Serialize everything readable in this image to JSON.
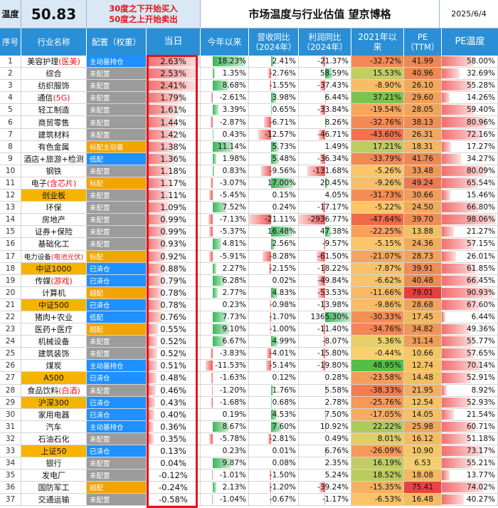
{
  "header": {
    "temp_label": "温度",
    "temp_value": "50.83",
    "rule_line1": "30度之下开始买入",
    "rule_line2": "50度之上开始卖出",
    "title": "市场温度与行业估值 望京博格",
    "date": "2025/6/4"
  },
  "columns": {
    "idx": "序号",
    "name": "行业名称",
    "cfg": "配置（权重）",
    "today": "当日",
    "ytd": "今年以来",
    "rev": "营收同比\n（2024年）",
    "prof": "利润同比\n（2024年）",
    "since2021": "2021年以\n来",
    "pe": "PE\n（TTM）",
    "pe_temp": "PE温度"
  },
  "colors": {
    "header_bg": "#2a8fd6",
    "cfg_active": "#1e90ff",
    "cfg_none": "#9c9c9c",
    "cfg_underweight": "#f2a400",
    "red": "#e8131b"
  },
  "rows": [
    {
      "idx": "1",
      "name": "美容护理",
      "name_red": "(医美)",
      "cfg": "主动基持仓",
      "cfg_type": "active",
      "today": "2.63%",
      "ytd": "18.23%",
      "ytd_v": 18.23,
      "rev": "2.41%",
      "rev_v": 2.41,
      "prof": "-21.37%",
      "prof_v": -21.37,
      "s2021": "-32.72%",
      "s2021_v": -32.72,
      "pe": "41.99",
      "pe_v": 41.99,
      "pet": "58.00%",
      "pet_v": 58.0
    },
    {
      "idx": "2",
      "name": "综合",
      "name_red": "",
      "cfg": "未配置",
      "cfg_type": "none",
      "today": "2.53%",
      "ytd": "1.35%",
      "ytd_v": 1.35,
      "rev": "-2.76%",
      "rev_v": -2.76,
      "prof": "58.59%",
      "prof_v": 58.59,
      "s2021": "15.53%",
      "s2021_v": 15.53,
      "pe": "40.96",
      "pe_v": 40.96,
      "pet": "32.69%",
      "pet_v": 32.69
    },
    {
      "idx": "3",
      "name": "纺织服饰",
      "name_red": "",
      "cfg": "未配置",
      "cfg_type": "none",
      "today": "2.41%",
      "ytd": "8.68%",
      "ytd_v": 8.68,
      "rev": "-1.55%",
      "rev_v": -1.55,
      "prof": "-37.43%",
      "prof_v": -37.43,
      "s2021": "-8.90%",
      "s2021_v": -8.9,
      "pe": "26.10",
      "pe_v": 26.1,
      "pet": "55.28%",
      "pet_v": 55.28
    },
    {
      "idx": "4",
      "name": "通信",
      "name_red": "(5G)",
      "cfg": "未配置",
      "cfg_type": "none",
      "today": "1.79%",
      "ytd": "-2.61%",
      "ytd_v": -2.61,
      "rev": "3.98%",
      "rev_v": 3.98,
      "prof": "6.44%",
      "prof_v": 6.44,
      "s2021": "37.21%",
      "s2021_v": 37.21,
      "pe": "29.60",
      "pe_v": 29.6,
      "pet": "14.26%",
      "pet_v": 14.26
    },
    {
      "idx": "5",
      "name": "轻工制造",
      "name_red": "",
      "cfg": "未配置",
      "cfg_type": "none",
      "today": "1.61%",
      "ytd": "3.39%",
      "ytd_v": 3.39,
      "rev": "0.65%",
      "rev_v": 0.65,
      "prof": "-33.84%",
      "prof_v": -33.84,
      "s2021": "-19.54%",
      "s2021_v": -19.54,
      "pe": "28.05",
      "pe_v": 28.05,
      "pet": "59.40%",
      "pet_v": 59.4
    },
    {
      "idx": "6",
      "name": "商贸零售",
      "name_red": "",
      "cfg": "未配置",
      "cfg_type": "none",
      "today": "1.44%",
      "ytd": "-2.87%",
      "ytd_v": -2.87,
      "rev": "-6.71%",
      "rev_v": -6.71,
      "prof": "8.26%",
      "prof_v": 8.26,
      "s2021": "-32.76%",
      "s2021_v": -32.76,
      "pe": "38.13",
      "pe_v": 38.13,
      "pet": "80.96%",
      "pet_v": 80.96
    },
    {
      "idx": "7",
      "name": "建筑材料",
      "name_red": "",
      "cfg": "未配置",
      "cfg_type": "none",
      "today": "1.42%",
      "ytd": "0.43%",
      "ytd_v": 0.43,
      "rev": "-12.57%",
      "rev_v": -12.57,
      "prof": "-46.71%",
      "prof_v": -46.71,
      "s2021": "-43.60%",
      "s2021_v": -43.6,
      "pe": "26.31",
      "pe_v": 26.31,
      "pet": "72.16%",
      "pet_v": 72.16
    },
    {
      "idx": "8",
      "name": "有色金属",
      "name_red": "",
      "cfg": "标配主动基",
      "cfg_type": "under",
      "today": "1.38%",
      "ytd": "11.14%",
      "ytd_v": 11.14,
      "rev": "5.73%",
      "rev_v": 5.73,
      "prof": "1.49%",
      "prof_v": 1.49,
      "s2021": "17.21%",
      "s2021_v": 17.21,
      "pe": "18.31",
      "pe_v": 18.31,
      "pet": "17.27%",
      "pet_v": 17.27
    },
    {
      "idx": "9",
      "name": "酒店+旅游+检测",
      "name_red": "",
      "cfg": "低配",
      "cfg_type": "active",
      "today": "1.36%",
      "ytd": "1.98%",
      "ytd_v": 1.98,
      "rev": "5.48%",
      "rev_v": 5.48,
      "prof": "-36.34%",
      "prof_v": -36.34,
      "s2021": "-33.79%",
      "s2021_v": -33.79,
      "pe": "41.76",
      "pe_v": 41.76,
      "pet": "34.27%",
      "pet_v": 34.27
    },
    {
      "idx": "10",
      "name": "钢铁",
      "name_red": "",
      "cfg": "未配置",
      "cfg_type": "none",
      "today": "1.18%",
      "ytd": "0.83%",
      "ytd_v": 0.83,
      "rev": "-9.56%",
      "rev_v": -9.56,
      "prof": "-131.68%",
      "prof_v": -131.68,
      "s2021": "-5.26%",
      "s2021_v": -5.26,
      "pe": "33.48",
      "pe_v": 33.48,
      "pet": "80.09%",
      "pet_v": 80.09
    },
    {
      "idx": "11",
      "name": "电子",
      "name_red": "(含芯片)",
      "cfg": "标配",
      "cfg_type": "under",
      "today": "1.17%",
      "ytd": "-3.07%",
      "ytd_v": -3.07,
      "rev": "17.00%",
      "rev_v": 17.0,
      "prof": "20.45%",
      "prof_v": 20.45,
      "s2021": "-9.26%",
      "s2021_v": -9.26,
      "pe": "49.24",
      "pe_v": 49.24,
      "pet": "65.54%",
      "pet_v": 65.54
    },
    {
      "idx": "12",
      "name": "创业板",
      "name_red": "",
      "cfg": "未配置",
      "cfg_type": "none",
      "today": "1.11%",
      "ytd": "-5.45%",
      "ytd_v": -5.45,
      "rev": "0.15%",
      "rev_v": 0.15,
      "prof": "4.05%",
      "prof_v": 4.05,
      "s2021": "-31.73%",
      "s2021_v": -31.73,
      "pe": "30.66",
      "pe_v": 30.66,
      "pet": "15.46%",
      "pet_v": 15.46,
      "name_orange": true
    },
    {
      "idx": "13",
      "name": "环保",
      "name_red": "",
      "cfg": "未配置",
      "cfg_type": "none",
      "today": "1.09%",
      "ytd": "7.52%",
      "ytd_v": 7.52,
      "rev": "0.24%",
      "rev_v": 0.24,
      "prof": "-17.17%",
      "prof_v": -17.17,
      "s2021": "-5.22%",
      "s2021_v": -5.22,
      "pe": "24.50",
      "pe_v": 24.5,
      "pet": "66.80%",
      "pet_v": 66.8
    },
    {
      "idx": "14",
      "name": "房地产",
      "name_red": "",
      "cfg": "未配置",
      "cfg_type": "none",
      "today": "0.99%",
      "ytd": "-7.13%",
      "ytd_v": -7.13,
      "rev": "-21.11%",
      "rev_v": -21.11,
      "prof": "-2936.77%",
      "prof_v": -2936.77,
      "s2021": "-47.64%",
      "s2021_v": -47.64,
      "pe": "39.70",
      "pe_v": 39.7,
      "pet": "98.06%",
      "pet_v": 98.06
    },
    {
      "idx": "15",
      "name": "证券+保险",
      "name_red": "",
      "cfg": "未配置",
      "cfg_type": "none",
      "today": "0.99%",
      "ytd": "-5.37%",
      "ytd_v": -5.37,
      "rev": "16.48%",
      "rev_v": 16.48,
      "prof": "47.38%",
      "prof_v": 47.38,
      "s2021": "-22.25%",
      "s2021_v": -22.25,
      "pe": "13.88",
      "pe_v": 13.88,
      "pet": "21.27%",
      "pet_v": 21.27
    },
    {
      "idx": "16",
      "name": "基础化工",
      "name_red": "",
      "cfg": "未配置",
      "cfg_type": "none",
      "today": "0.93%",
      "ytd": "4.81%",
      "ytd_v": 4.81,
      "rev": "2.56%",
      "rev_v": 2.56,
      "prof": "-9.57%",
      "prof_v": -9.57,
      "s2021": "-5.15%",
      "s2021_v": -5.15,
      "pe": "24.36",
      "pe_v": 24.36,
      "pet": "57.15%",
      "pet_v": 57.15
    },
    {
      "idx": "17",
      "name": "电力设备",
      "name_red": "(电池光伏)",
      "cfg": "标配",
      "cfg_type": "under",
      "today": "0.92%",
      "ytd": "-5.91%",
      "ytd_v": -5.91,
      "rev": "-8.28%",
      "rev_v": -8.28,
      "prof": "-61.50%",
      "prof_v": -61.5,
      "s2021": "-21.07%",
      "s2021_v": -21.07,
      "pe": "28.73",
      "pe_v": 28.73,
      "pet": "26.01%",
      "pet_v": 26.01,
      "small": true
    },
    {
      "idx": "18",
      "name": "中证1000",
      "name_red": "",
      "cfg": "已清仓",
      "cfg_type": "active",
      "today": "0.88%",
      "ytd": "2.27%",
      "ytd_v": 2.27,
      "rev": "-2.15%",
      "rev_v": -2.15,
      "prof": "-18.22%",
      "prof_v": -18.22,
      "s2021": "-7.87%",
      "s2021_v": -7.87,
      "pe": "39.91",
      "pe_v": 39.91,
      "pet": "61.85%",
      "pet_v": 61.85,
      "name_orange": true
    },
    {
      "idx": "19",
      "name": "传媒",
      "name_red": "(游戏)",
      "cfg": "已清仓",
      "cfg_type": "active",
      "today": "0.79%",
      "ytd": "6.28%",
      "ytd_v": 6.28,
      "rev": "0.02%",
      "rev_v": 0.02,
      "prof": "-49.84%",
      "prof_v": -49.84,
      "s2021": "-6.62%",
      "s2021_v": -6.62,
      "pe": "40.48",
      "pe_v": 40.48,
      "pet": "66.45%",
      "pet_v": 66.45
    },
    {
      "idx": "20",
      "name": "计算机",
      "name_red": "",
      "cfg": "超配",
      "cfg_type": "under",
      "today": "0.78%",
      "ytd": "2.77%",
      "ytd_v": 2.77,
      "rev": "4.83%",
      "rev_v": 4.83,
      "prof": "-53.53%",
      "prof_v": -53.53,
      "s2021": "-11.66%",
      "s2021_v": -11.66,
      "pe": "79.01",
      "pe_v": 79.01,
      "pet": "90.93%",
      "pet_v": 90.93
    },
    {
      "idx": "21",
      "name": "中证500",
      "name_red": "",
      "cfg": "已清仓",
      "cfg_type": "active",
      "today": "0.78%",
      "ytd": "0.23%",
      "ytd_v": 0.23,
      "rev": "-0.98%",
      "rev_v": -0.98,
      "prof": "-13.98%",
      "prof_v": -13.98,
      "s2021": "-9.86%",
      "s2021_v": -9.86,
      "pe": "28.68",
      "pe_v": 28.68,
      "pet": "67.60%",
      "pet_v": 67.6,
      "name_orange": true
    },
    {
      "idx": "22",
      "name": "猪肉+农业",
      "name_red": "",
      "cfg": "低配",
      "cfg_type": "active",
      "today": "0.76%",
      "ytd": "7.73%",
      "ytd_v": 7.73,
      "rev": "-1.70%",
      "rev_v": -1.7,
      "prof": "1365.30%",
      "prof_v": 1365.3,
      "s2021": "-30.33%",
      "s2021_v": -30.33,
      "pe": "17.45",
      "pe_v": 17.45,
      "pet": "6.44%",
      "pet_v": 6.44
    },
    {
      "idx": "23",
      "name": "医药+医疗",
      "name_red": "",
      "cfg": "超配",
      "cfg_type": "under",
      "today": "0.55%",
      "ytd": "9.10%",
      "ytd_v": 9.1,
      "rev": "-1.00%",
      "rev_v": -1.0,
      "prof": "-11.40%",
      "prof_v": -11.4,
      "s2021": "-34.76%",
      "s2021_v": -34.76,
      "pe": "34.82",
      "pe_v": 34.82,
      "pet": "49.36%",
      "pet_v": 49.36
    },
    {
      "idx": "24",
      "name": "机械设备",
      "name_red": "",
      "cfg": "未配置",
      "cfg_type": "none",
      "today": "0.52%",
      "ytd": "6.67%",
      "ytd_v": 6.67,
      "rev": "4.99%",
      "rev_v": 4.99,
      "prof": "-8.07%",
      "prof_v": -8.07,
      "s2021": "5.36%",
      "s2021_v": 5.36,
      "pe": "31.14",
      "pe_v": 31.14,
      "pet": "55.77%",
      "pet_v": 55.77
    },
    {
      "idx": "25",
      "name": "建筑装饰",
      "name_red": "",
      "cfg": "未配置",
      "cfg_type": "none",
      "today": "0.52%",
      "ytd": "-3.83%",
      "ytd_v": -3.83,
      "rev": "-4.01%",
      "rev_v": -4.01,
      "prof": "-15.80%",
      "prof_v": -15.8,
      "s2021": "-0.44%",
      "s2021_v": -0.44,
      "pe": "10.66",
      "pe_v": 10.66,
      "pet": "57.65%",
      "pet_v": 57.65
    },
    {
      "idx": "26",
      "name": "煤炭",
      "name_red": "",
      "cfg": "主动基持仓",
      "cfg_type": "active",
      "today": "0.51%",
      "ytd": "-11.53%",
      "ytd_v": -11.53,
      "rev": "-5.14%",
      "rev_v": -5.14,
      "prof": "-19.80%",
      "prof_v": -19.8,
      "s2021": "48.95%",
      "s2021_v": 48.95,
      "pe": "12.74",
      "pe_v": 12.74,
      "pet": "70.14%",
      "pet_v": 70.14
    },
    {
      "idx": "27",
      "name": "A500",
      "name_red": "",
      "cfg": "已清仓",
      "cfg_type": "active",
      "today": "0.48%",
      "ytd": "-1.63%",
      "ytd_v": -1.63,
      "rev": "0.12%",
      "rev_v": 0.12,
      "prof": "0.28%",
      "prof_v": 0.28,
      "s2021": "-23.58%",
      "s2021_v": -23.58,
      "pe": "14.48",
      "pe_v": 14.48,
      "pet": "52.91%",
      "pet_v": 52.91,
      "name_orange": true
    },
    {
      "idx": "28",
      "name": "食品饮料",
      "name_red": "(白酒)",
      "cfg": "未配置",
      "cfg_type": "none",
      "today": "0.46%",
      "ytd": "-1.20%",
      "ytd_v": -1.2,
      "rev": "1.76%",
      "rev_v": 1.76,
      "prof": "5.58%",
      "prof_v": 5.58,
      "s2021": "-38.33%",
      "s2021_v": -38.33,
      "pe": "21.95",
      "pe_v": 21.95,
      "pet": "8.92%",
      "pet_v": 8.92
    },
    {
      "idx": "29",
      "name": "沪深300",
      "name_red": "",
      "cfg": "已清仓",
      "cfg_type": "active",
      "today": "0.43%",
      "ytd": "-1.68%",
      "ytd_v": -1.68,
      "rev": "0.68%",
      "rev_v": 0.68,
      "prof": "2.78%",
      "prof_v": 2.78,
      "s2021": "-25.76%",
      "s2021_v": -25.76,
      "pe": "12.54",
      "pe_v": 12.54,
      "pet": "52.93%",
      "pet_v": 52.93,
      "name_orange": true
    },
    {
      "idx": "30",
      "name": "家用电器",
      "name_red": "",
      "cfg": "已清仓",
      "cfg_type": "active",
      "today": "0.40%",
      "ytd": "0.19%",
      "ytd_v": 0.19,
      "rev": "4.53%",
      "rev_v": 4.53,
      "prof": "7.50%",
      "prof_v": 7.5,
      "s2021": "-17.05%",
      "s2021_v": -17.05,
      "pe": "14.05",
      "pe_v": 14.05,
      "pet": "21.54%",
      "pet_v": 21.54
    },
    {
      "idx": "31",
      "name": "汽车",
      "name_red": "",
      "cfg": "主动基持仓",
      "cfg_type": "active",
      "today": "0.36%",
      "ytd": "8.67%",
      "ytd_v": 8.67,
      "rev": "7.60%",
      "rev_v": 7.6,
      "prof": "10.92%",
      "prof_v": 10.92,
      "s2021": "22.22%",
      "s2021_v": 22.22,
      "pe": "25.98",
      "pe_v": 25.98,
      "pet": "60.71%",
      "pet_v": 60.71
    },
    {
      "idx": "32",
      "name": "石油石化",
      "name_red": "",
      "cfg": "未配置",
      "cfg_type": "none",
      "today": "0.35%",
      "ytd": "-5.78%",
      "ytd_v": -5.78,
      "rev": "-2.81%",
      "rev_v": -2.81,
      "prof": "0.49%",
      "prof_v": 0.49,
      "s2021": "8.01%",
      "s2021_v": 8.01,
      "pe": "16.12",
      "pe_v": 16.12,
      "pet": "51.18%",
      "pet_v": 51.18
    },
    {
      "idx": "33",
      "name": "上证50",
      "name_red": "",
      "cfg": "已清仓",
      "cfg_type": "active",
      "today": "0.13%",
      "ytd": "0.23%",
      "ytd_v": 0.23,
      "rev": "0.01%",
      "rev_v": 0.01,
      "prof": "6.76%",
      "prof_v": 6.76,
      "s2021": "-26.09%",
      "s2021_v": -26.09,
      "pe": "10.90",
      "pe_v": 10.9,
      "pet": "73.17%",
      "pet_v": 73.17,
      "name_orange": true
    },
    {
      "idx": "34",
      "name": "银行",
      "name_red": "",
      "cfg": "未配置",
      "cfg_type": "none",
      "today": "0.04%",
      "ytd": "9.87%",
      "ytd_v": 9.87,
      "rev": "0.08%",
      "rev_v": 0.08,
      "prof": "2.35%",
      "prof_v": 2.35,
      "s2021": "16.19%",
      "s2021_v": 16.19,
      "pe": "6.53",
      "pe_v": 6.53,
      "pet": "55.21%",
      "pet_v": 55.21
    },
    {
      "idx": "35",
      "name": "发电厂",
      "name_red": "",
      "cfg": "未配置",
      "cfg_type": "none",
      "today": "-0.12%",
      "ytd": "-1.01%",
      "ytd_v": -1.01,
      "rev": "-1.50%",
      "rev_v": -1.5,
      "prof": "5.24%",
      "prof_v": 5.24,
      "s2021": "18.52%",
      "s2021_v": 18.52,
      "pe": "18.08",
      "pe_v": 18.08,
      "pet": "13.77%",
      "pet_v": 13.77
    },
    {
      "idx": "36",
      "name": "国防军工",
      "name_red": "",
      "cfg": "超配",
      "cfg_type": "under",
      "today": "-0.24%",
      "ytd": "2.13%",
      "ytd_v": 2.13,
      "rev": "-1.20%",
      "rev_v": -1.2,
      "prof": "-39.24%",
      "prof_v": -39.24,
      "s2021": "-15.35%",
      "s2021_v": -15.35,
      "pe": "75.41",
      "pe_v": 75.41,
      "pet": "74.02%",
      "pet_v": 74.02
    },
    {
      "idx": "37",
      "name": "交通运输",
      "name_red": "",
      "cfg": "未配置",
      "cfg_type": "none",
      "today": "-0.58%",
      "ytd": "-1.04%",
      "ytd_v": -1.04,
      "rev": "-0.67%",
      "rev_v": -0.67,
      "prof": "-1.17%",
      "prof_v": -1.17,
      "s2021": "-6.53%",
      "s2021_v": -6.53,
      "pe": "16.48",
      "pe_v": 16.48,
      "pet": "40.27%",
      "pet_v": 40.27
    }
  ]
}
